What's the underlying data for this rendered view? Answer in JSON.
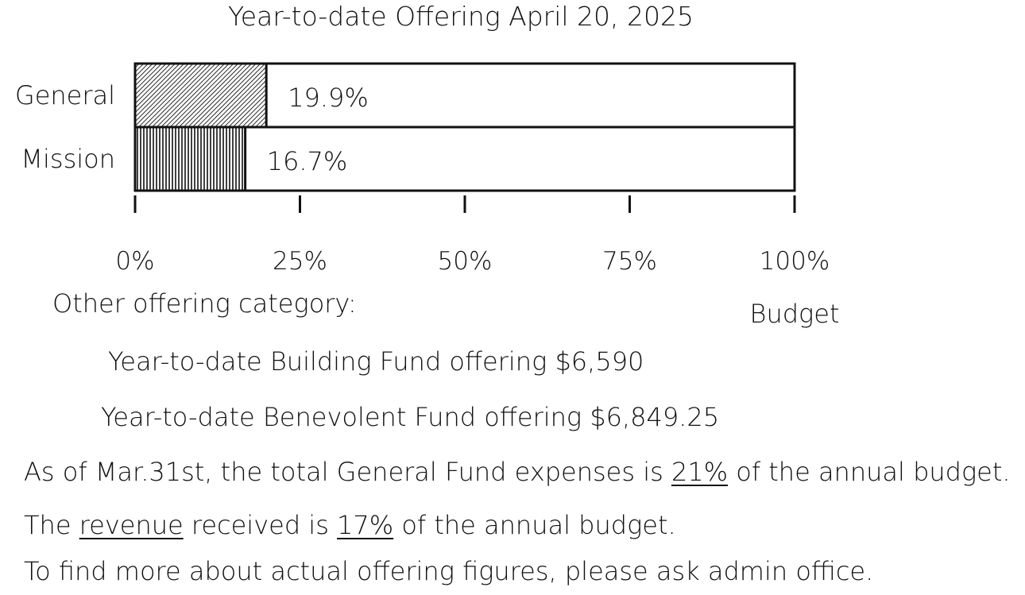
{
  "chart_data": {
    "type": "bar",
    "orientation": "horizontal",
    "title": "Year-to-date Offering April 20, 2025",
    "categories": [
      "General",
      "Mission"
    ],
    "values": [
      19.9,
      16.7
    ],
    "value_labels": [
      "19.9%",
      "16.7%"
    ],
    "xlim": [
      0,
      100
    ],
    "x_ticks": [
      0,
      25,
      50,
      75,
      100
    ],
    "x_tick_labels": [
      "0%",
      "25%",
      "50%",
      "75%",
      "100%"
    ],
    "xlabel": "Budget",
    "grid": false,
    "fill_patterns": [
      "diagonal-hatch",
      "vertical-hatch"
    ]
  },
  "notes": {
    "heading": "Other offering category:",
    "building_fund": "Year-to-date Building Fund offering $6,590",
    "benevolent_fund": "Year-to-date Benevolent Fund offering $6,849.25",
    "expenses_pre": "As of Mar.31st, the total General Fund expenses is ",
    "expenses_pct": "21%",
    "expenses_post": " of the annual budget.",
    "revenue_pre": "The ",
    "revenue_word": "revenue",
    "revenue_mid": " received is ",
    "revenue_pct": "17%",
    "revenue_post": " of the annual budget.",
    "contact": "To find more about actual offering figures, please ask admin office."
  }
}
